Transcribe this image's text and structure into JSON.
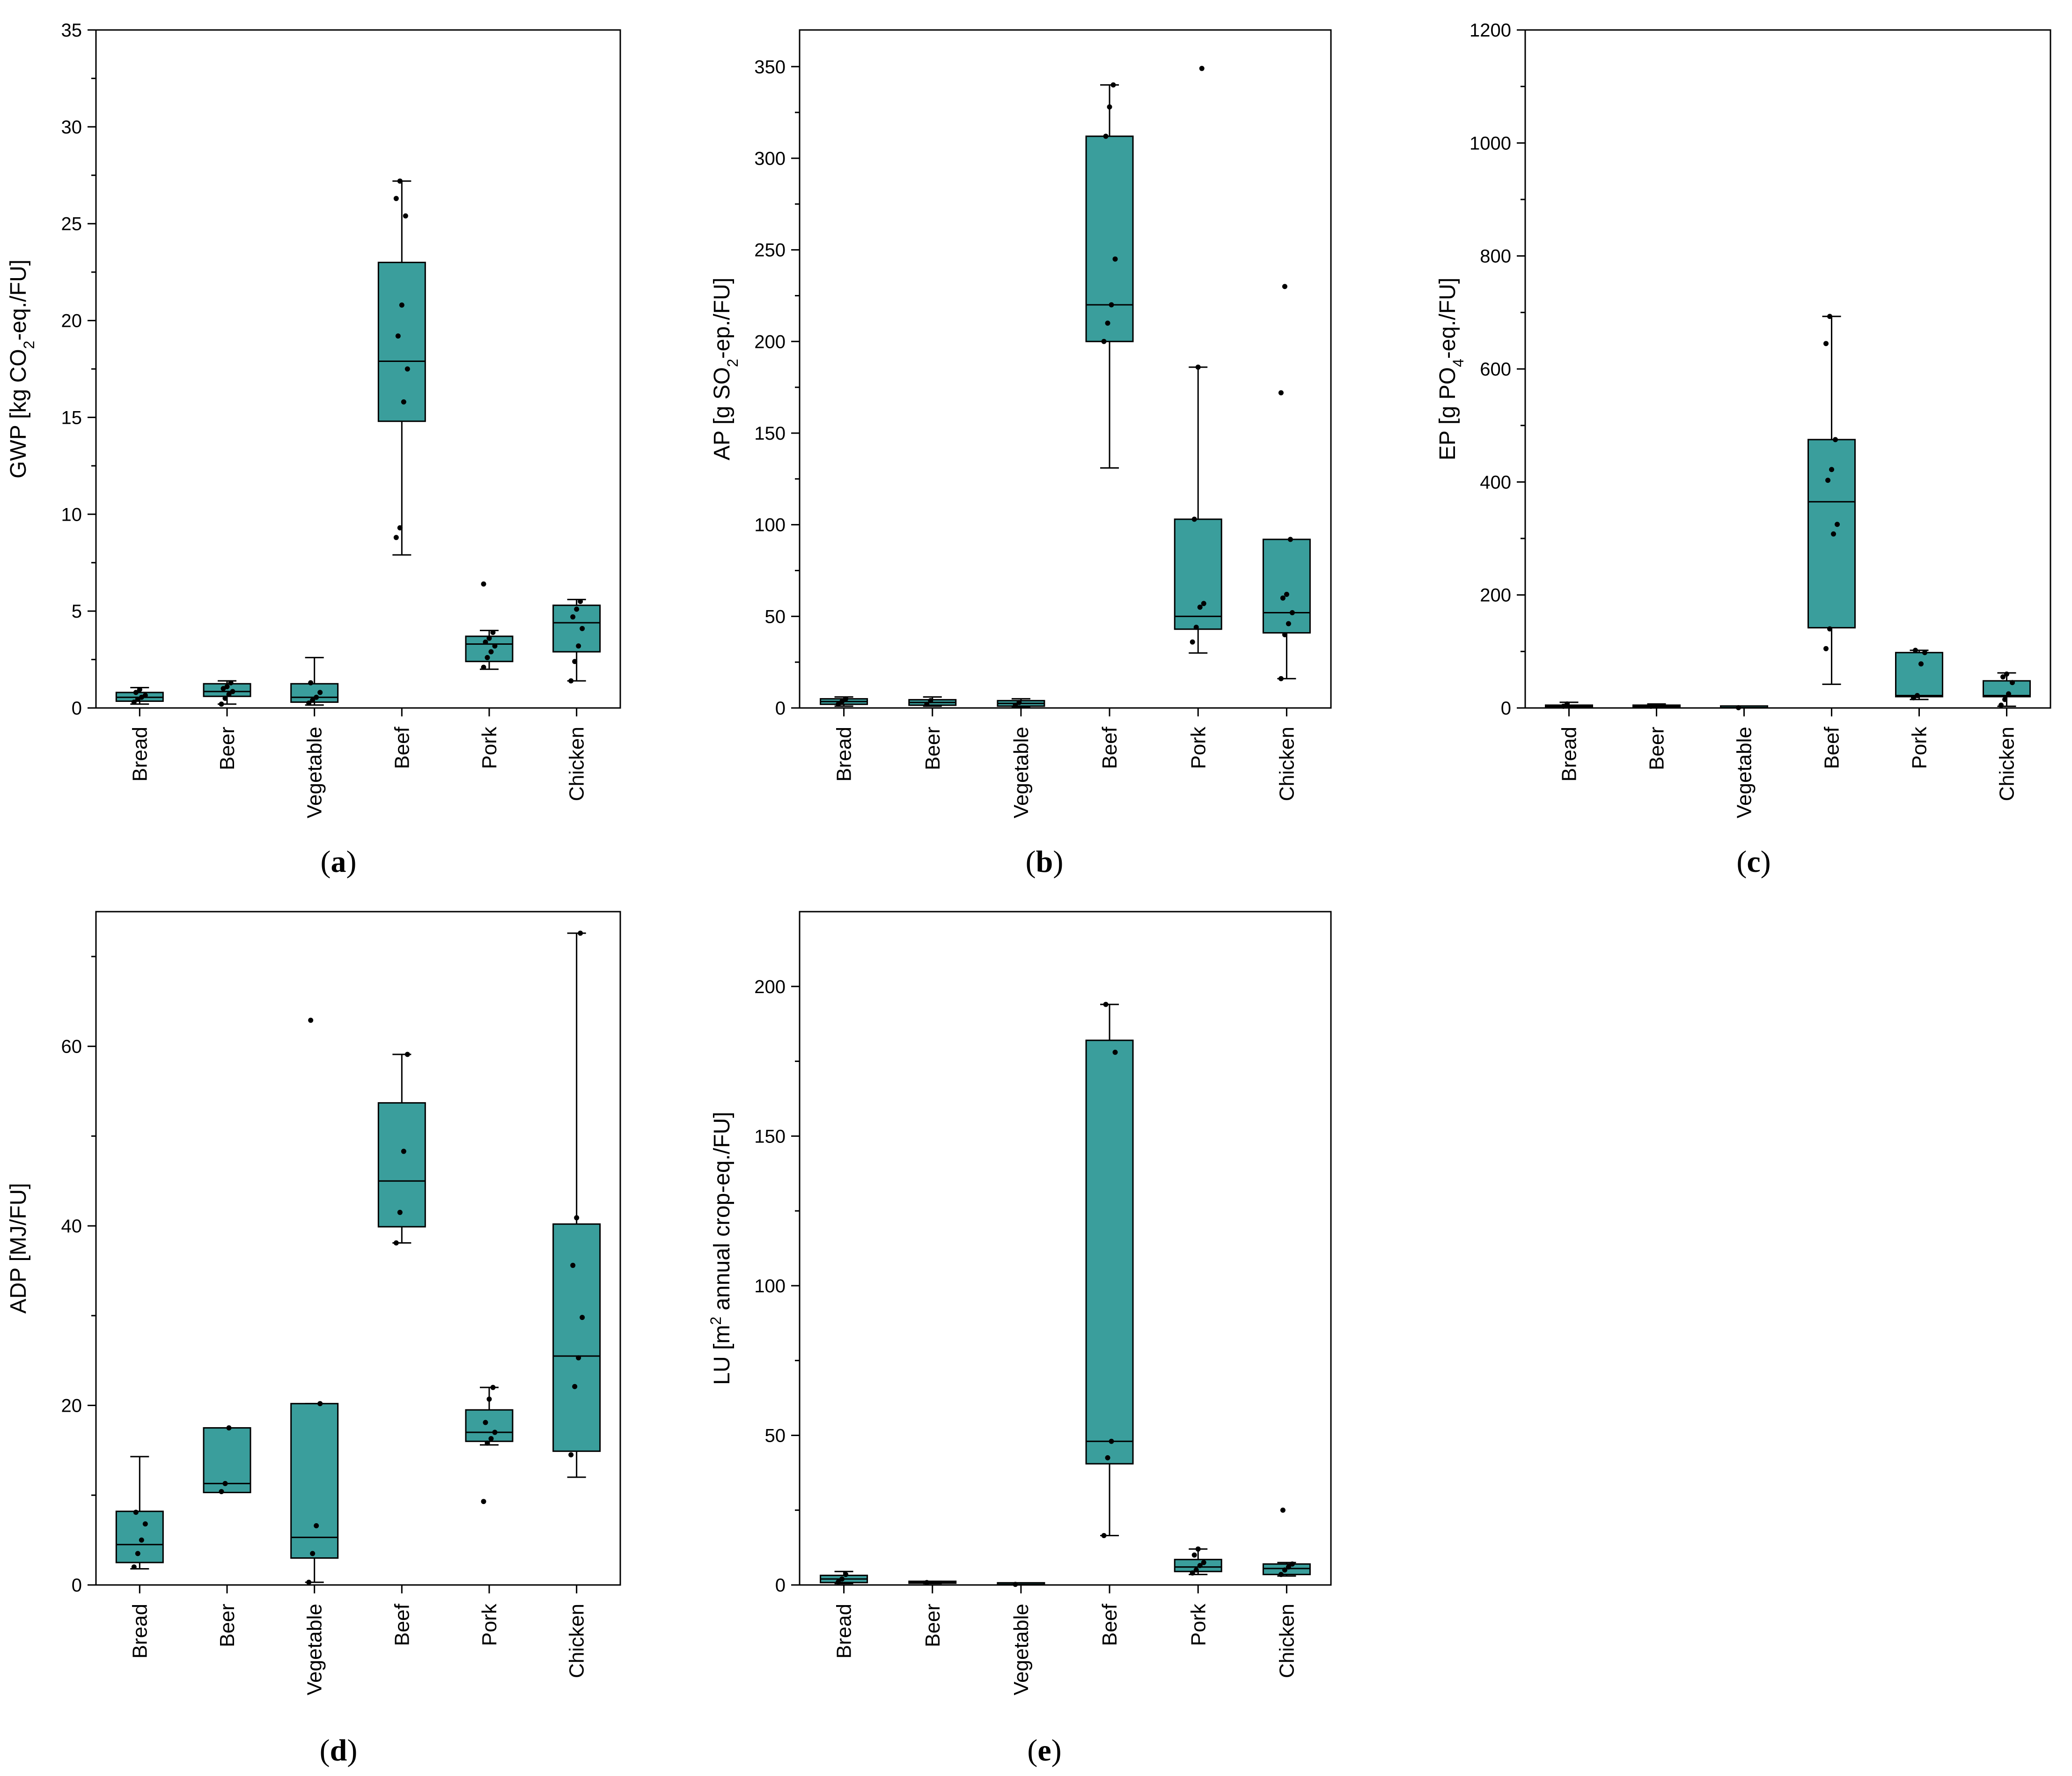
{
  "figure": {
    "box_color": "#3a9e9c",
    "line_color": "#000000"
  },
  "chart_data": [
    {
      "panel": "a",
      "type": "box",
      "ylabel": {
        "pre": "GWP [kg CO",
        "sub": "2",
        "post": "-eq./FU]"
      },
      "ylim": [
        0,
        35
      ],
      "yticks": [
        0,
        5,
        10,
        15,
        20,
        25,
        30,
        35
      ],
      "categories": [
        "Bread",
        "Beer",
        "Vegetable",
        "Beef",
        "Pork",
        "Chicken"
      ],
      "boxes": [
        {
          "q1": 0.35,
          "median": 0.55,
          "q3": 0.8,
          "whisker_low": 0.2,
          "whisker_high": 1.05,
          "points": [
            0.3,
            0.45,
            0.55,
            0.65,
            0.8,
            0.95
          ]
        },
        {
          "q1": 0.6,
          "median": 0.85,
          "q3": 1.25,
          "whisker_low": 0.2,
          "whisker_high": 1.4,
          "points": [
            0.2,
            0.5,
            0.7,
            0.85,
            1.0,
            1.1,
            1.3
          ]
        },
        {
          "q1": 0.3,
          "median": 0.55,
          "q3": 1.25,
          "whisker_low": 0.15,
          "whisker_high": 2.6,
          "points": [
            0.25,
            0.4,
            0.55,
            0.8,
            1.3
          ]
        },
        {
          "q1": 14.8,
          "median": 17.9,
          "q3": 23.0,
          "whisker_low": 7.9,
          "whisker_high": 27.2,
          "points": [
            8.8,
            9.3,
            15.8,
            17.5,
            19.2,
            20.8,
            25.4,
            26.3,
            27.2
          ]
        },
        {
          "q1": 2.4,
          "median": 3.3,
          "q3": 3.7,
          "whisker_low": 2.0,
          "whisker_high": 4.0,
          "points": [
            2.1,
            2.6,
            2.9,
            3.2,
            3.4,
            3.6,
            3.9,
            6.4
          ]
        },
        {
          "q1": 2.9,
          "median": 4.4,
          "q3": 5.3,
          "whisker_low": 1.4,
          "whisker_high": 5.6,
          "points": [
            1.4,
            2.4,
            3.2,
            4.1,
            4.7,
            5.1,
            5.5
          ]
        }
      ]
    },
    {
      "panel": "b",
      "type": "box",
      "ylabel": {
        "pre": "AP [g SO",
        "sub": "2",
        "post": "-ep./FU]"
      },
      "ylim": [
        0,
        370
      ],
      "yticks": [
        0,
        50,
        100,
        150,
        200,
        250,
        300,
        350
      ],
      "categories": [
        "Bread",
        "Beer",
        "Vegetable",
        "Beef",
        "Pork",
        "Chicken"
      ],
      "boxes": [
        {
          "q1": 2,
          "median": 3.5,
          "q3": 5,
          "whisker_low": 1,
          "whisker_high": 6,
          "points": [
            2,
            3.5,
            5
          ]
        },
        {
          "q1": 1.5,
          "median": 3,
          "q3": 4.5,
          "whisker_low": 1,
          "whisker_high": 6,
          "points": [
            2,
            4
          ]
        },
        {
          "q1": 1,
          "median": 2.5,
          "q3": 4,
          "whisker_low": 0.5,
          "whisker_high": 5,
          "points": [
            1.5,
            3
          ]
        },
        {
          "q1": 200,
          "median": 220,
          "q3": 312,
          "whisker_low": 131,
          "whisker_high": 340,
          "points": [
            200,
            210,
            220,
            245,
            312,
            328,
            340
          ]
        },
        {
          "q1": 43,
          "median": 50,
          "q3": 103,
          "whisker_low": 30,
          "whisker_high": 186,
          "points": [
            36,
            44,
            55,
            57,
            103,
            186,
            349
          ]
        },
        {
          "q1": 41,
          "median": 52,
          "q3": 92,
          "whisker_low": 16,
          "whisker_high": 92,
          "points": [
            16,
            40,
            46,
            52,
            60,
            62,
            92,
            172,
            230
          ]
        }
      ]
    },
    {
      "panel": "c",
      "type": "box",
      "ylabel": {
        "pre": "EP [g PO",
        "sub": "4",
        "post": "-eq./FU]"
      },
      "ylim": [
        0,
        1200
      ],
      "yticks": [
        0,
        200,
        400,
        600,
        800,
        1000,
        1200
      ],
      "categories": [
        "Bread",
        "Beer",
        "Vegetable",
        "Beef",
        "Pork",
        "Chicken"
      ],
      "boxes": [
        {
          "q1": 1,
          "median": 3,
          "q3": 5,
          "whisker_low": 0.5,
          "whisker_high": 10,
          "points": [
            3,
            7
          ]
        },
        {
          "q1": 1,
          "median": 3,
          "q3": 5,
          "whisker_low": 0.5,
          "whisker_high": 7,
          "points": [
            3
          ]
        },
        {
          "q1": 0.2,
          "median": 0.5,
          "q3": 1,
          "whisker_low": 0,
          "whisker_high": 1.5,
          "points": [
            0.5
          ]
        },
        {
          "q1": 142,
          "median": 365,
          "q3": 475,
          "whisker_low": 42,
          "whisker_high": 693,
          "points": [
            105,
            140,
            308,
            325,
            403,
            422,
            475,
            645,
            693
          ]
        },
        {
          "q1": 20,
          "median": 22,
          "q3": 98,
          "whisker_low": 15,
          "whisker_high": 102,
          "points": [
            18,
            22,
            78,
            98,
            102
          ]
        },
        {
          "q1": 20,
          "median": 22,
          "q3": 48,
          "whisker_low": 3,
          "whisker_high": 62,
          "points": [
            5,
            15,
            25,
            45,
            55,
            60
          ]
        }
      ]
    },
    {
      "panel": "d",
      "type": "box",
      "ylabel": {
        "pre": "ADP [MJ/FU]",
        "sub": "",
        "post": ""
      },
      "ylim": [
        0,
        75
      ],
      "yticks": [
        0,
        20,
        40,
        60
      ],
      "categories": [
        "Bread",
        "Beer",
        "Vegetable",
        "Beef",
        "Pork",
        "Chicken"
      ],
      "boxes": [
        {
          "q1": 2.5,
          "median": 4.5,
          "q3": 8.2,
          "whisker_low": 1.8,
          "whisker_high": 14.3,
          "points": [
            2.0,
            3.5,
            5.0,
            6.8,
            8.1
          ]
        },
        {
          "q1": 10.3,
          "median": 11.3,
          "q3": 17.5,
          "whisker_low": 10.3,
          "whisker_high": 17.5,
          "points": [
            10.4,
            11.3,
            17.5
          ]
        },
        {
          "q1": 3.0,
          "median": 5.3,
          "q3": 20.2,
          "whisker_low": 0.3,
          "whisker_high": 20.2,
          "points": [
            0.3,
            3.5,
            6.6,
            20.2,
            62.9
          ]
        },
        {
          "q1": 39.9,
          "median": 45.0,
          "q3": 53.7,
          "whisker_low": 38.1,
          "whisker_high": 59.1,
          "points": [
            38.1,
            41.5,
            48.3,
            59.1
          ]
        },
        {
          "q1": 16.0,
          "median": 17.0,
          "q3": 19.5,
          "whisker_low": 15.6,
          "whisker_high": 22.0,
          "points": [
            9.3,
            15.8,
            16.3,
            17.0,
            18.1,
            20.7,
            22.0
          ]
        },
        {
          "q1": 14.9,
          "median": 25.5,
          "q3": 40.2,
          "whisker_low": 12.0,
          "whisker_high": 72.6,
          "points": [
            14.5,
            22.1,
            25.3,
            29.8,
            35.6,
            40.9,
            72.6
          ]
        }
      ]
    },
    {
      "panel": "e",
      "type": "box",
      "ylabel": {
        "pre": "LU [m",
        "sup": "2",
        "post": " annual crop-eq./FU]"
      },
      "ylim": [
        0,
        225
      ],
      "yticks": [
        0,
        50,
        100,
        150,
        200
      ],
      "categories": [
        "Bread",
        "Beer",
        "Vegetable",
        "Beef",
        "Pork",
        "Chicken"
      ],
      "boxes": [
        {
          "q1": 0.8,
          "median": 2.0,
          "q3": 3.2,
          "whisker_low": 0.5,
          "whisker_high": 4.5,
          "points": [
            1.0,
            2.0,
            3.5
          ]
        },
        {
          "q1": 0.6,
          "median": 0.8,
          "q3": 1.0,
          "whisker_low": 0.5,
          "whisker_high": 1.2,
          "points": [
            0.8
          ]
        },
        {
          "q1": 0.1,
          "median": 0.2,
          "q3": 0.3,
          "whisker_low": 0,
          "whisker_high": 0.4,
          "points": [
            0.2
          ]
        },
        {
          "q1": 40.5,
          "median": 48.0,
          "q3": 182.0,
          "whisker_low": 16.5,
          "whisker_high": 194.0,
          "points": [
            16.5,
            42.5,
            48.0,
            178.0,
            194.0
          ]
        },
        {
          "q1": 4.5,
          "median": 6.0,
          "q3": 8.5,
          "whisker_low": 3.5,
          "whisker_high": 12.0,
          "points": [
            4.0,
            5.0,
            6.5,
            7.5,
            10.0,
            12.0
          ]
        },
        {
          "q1": 3.5,
          "median": 5.5,
          "q3": 7.0,
          "whisker_low": 3.0,
          "whisker_high": 7.5,
          "points": [
            3.5,
            5.0,
            6.0,
            7.0,
            25.0
          ]
        }
      ]
    }
  ]
}
